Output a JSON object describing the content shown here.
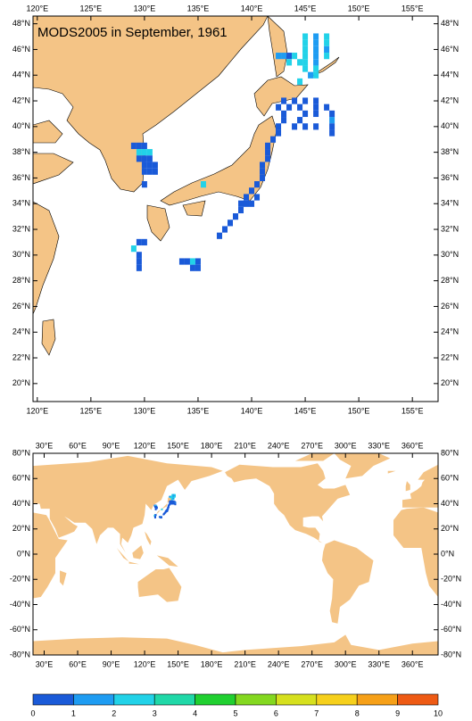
{
  "title": "MODS2005 in September, 1961",
  "land_color": "#f4c486",
  "maps": [
    {
      "xlim": [
        119.6,
        157.4
      ],
      "ylim": [
        18.6,
        48.6
      ],
      "xticks": [
        {
          "value": 120,
          "label": "120°E"
        },
        {
          "value": 125,
          "label": "125°E"
        },
        {
          "value": 130,
          "label": "130°E"
        },
        {
          "value": 135,
          "label": "135°E"
        },
        {
          "value": 140,
          "label": "140°E"
        },
        {
          "value": 145,
          "label": "145°E"
        },
        {
          "value": 150,
          "label": "150°E"
        },
        {
          "value": 155,
          "label": "155°E"
        }
      ],
      "yticks": [
        {
          "value": 20,
          "label": "20°N"
        },
        {
          "value": 22,
          "label": "22°N"
        },
        {
          "value": 24,
          "label": "24°N"
        },
        {
          "value": 26,
          "label": "26°N"
        },
        {
          "value": 28,
          "label": "28°N"
        },
        {
          "value": 30,
          "label": "30°N"
        },
        {
          "value": 32,
          "label": "32°N"
        },
        {
          "value": 34,
          "label": "34°N"
        },
        {
          "value": 36,
          "label": "36°N"
        },
        {
          "value": 38,
          "label": "38°N"
        },
        {
          "value": 40,
          "label": "40°N"
        },
        {
          "value": 42,
          "label": "42°N"
        },
        {
          "value": 44,
          "label": "44°N"
        },
        {
          "value": 46,
          "label": "46°N"
        },
        {
          "value": 48,
          "label": "48°N"
        }
      ]
    },
    {
      "xlim": [
        20,
        383
      ],
      "ylim": [
        -80,
        80
      ],
      "xticks": [
        {
          "value": 30,
          "label": "30°E"
        },
        {
          "value": 60,
          "label": "60°E"
        },
        {
          "value": 90,
          "label": "90°E"
        },
        {
          "value": 120,
          "label": "120°E"
        },
        {
          "value": 150,
          "label": "150°E"
        },
        {
          "value": 180,
          "label": "180°E"
        },
        {
          "value": 210,
          "label": "210°E"
        },
        {
          "value": 240,
          "label": "240°E"
        },
        {
          "value": 270,
          "label": "270°E"
        },
        {
          "value": 300,
          "label": "300°E"
        },
        {
          "value": 330,
          "label": "330°E"
        },
        {
          "value": 360,
          "label": "360°E"
        }
      ],
      "yticks": [
        {
          "value": 80,
          "label": "80°N"
        },
        {
          "value": 60,
          "label": "60°N"
        },
        {
          "value": 40,
          "label": "40°N"
        },
        {
          "value": 20,
          "label": "20°N"
        },
        {
          "value": 0,
          "label": "0°N"
        },
        {
          "value": -20,
          "label": "-20°N"
        },
        {
          "value": -40,
          "label": "-40°N"
        },
        {
          "value": -60,
          "label": "-60°N"
        },
        {
          "value": -80,
          "label": "-80°N"
        }
      ]
    }
  ],
  "cells": [
    [
      142.5,
      45.5,
      1.5
    ],
    [
      143,
      45.5,
      1.5
    ],
    [
      143.5,
      45.5,
      0.5
    ],
    [
      144,
      45.5,
      2.5
    ],
    [
      143.5,
      45,
      2.5
    ],
    [
      144.5,
      45,
      2.5
    ],
    [
      145,
      47,
      2.5
    ],
    [
      145,
      46.5,
      2.5
    ],
    [
      145,
      46,
      2.5
    ],
    [
      145,
      45.5,
      2.5
    ],
    [
      145,
      45,
      2.5
    ],
    [
      145,
      44.5,
      2.5
    ],
    [
      146,
      47,
      1.5
    ],
    [
      146,
      46.5,
      1.5
    ],
    [
      146,
      46,
      1.5
    ],
    [
      146,
      45.5,
      1.5
    ],
    [
      146,
      45,
      1.5
    ],
    [
      146,
      44.5,
      2.5
    ],
    [
      146,
      44,
      2.5
    ],
    [
      147,
      47,
      2.5
    ],
    [
      147,
      46.5,
      2.5
    ],
    [
      147,
      46,
      1.5
    ],
    [
      147,
      45.5,
      2.5
    ],
    [
      145.5,
      44,
      1.5
    ],
    [
      144.5,
      43.5,
      2.5
    ],
    [
      143,
      42,
      0.5
    ],
    [
      144,
      42,
      0.5
    ],
    [
      145,
      42,
      0.5
    ],
    [
      146,
      42,
      0.5
    ],
    [
      142.5,
      41.5,
      0.5
    ],
    [
      143.5,
      41.5,
      0.5
    ],
    [
      144.5,
      41.5,
      0.5
    ],
    [
      146,
      41.5,
      0.5
    ],
    [
      147,
      41.5,
      0.5
    ],
    [
      143,
      41,
      0.5
    ],
    [
      145,
      41,
      0.5
    ],
    [
      146,
      41,
      0.5
    ],
    [
      147.5,
      41,
      0.5
    ],
    [
      143,
      40.5,
      0.5
    ],
    [
      144.5,
      40.5,
      0.5
    ],
    [
      147.5,
      40.5,
      1.5
    ],
    [
      142.5,
      40,
      0.5
    ],
    [
      144,
      40,
      0.5
    ],
    [
      145,
      40,
      0.5
    ],
    [
      146,
      40,
      0.5
    ],
    [
      147.5,
      40,
      0.5
    ],
    [
      142.5,
      39.5,
      0.5
    ],
    [
      147.5,
      39.5,
      0.5
    ],
    [
      142,
      39,
      0.5
    ],
    [
      141.5,
      38.5,
      0.5
    ],
    [
      141.5,
      38,
      0.5
    ],
    [
      141.5,
      37.5,
      0.5
    ],
    [
      141,
      37,
      0.5
    ],
    [
      141,
      36.5,
      0.5
    ],
    [
      141,
      36,
      0.5
    ],
    [
      140.5,
      35.5,
      0.5
    ],
    [
      140,
      35,
      0.5
    ],
    [
      139.5,
      34.5,
      0.5
    ],
    [
      139.5,
      34,
      0.5
    ],
    [
      139,
      33.5,
      0.5
    ],
    [
      138.5,
      33,
      0.5
    ],
    [
      138,
      32.5,
      0.5
    ],
    [
      137.5,
      32,
      0.5
    ],
    [
      137,
      31.5,
      0.5
    ],
    [
      140.5,
      34.5,
      0.5
    ],
    [
      140,
      34,
      0.5
    ],
    [
      139,
      34,
      0.5
    ],
    [
      129,
      38.5,
      0.5
    ],
    [
      129.5,
      38.5,
      0.5
    ],
    [
      130,
      38.5,
      0.5
    ],
    [
      129.5,
      38,
      2.5
    ],
    [
      130,
      38,
      2.5
    ],
    [
      130.5,
      38,
      2.5
    ],
    [
      129.5,
      37.5,
      0.5
    ],
    [
      130,
      37.5,
      0.5
    ],
    [
      130.5,
      37.5,
      0.5
    ],
    [
      130,
      37,
      0.5
    ],
    [
      130.5,
      37,
      0.5
    ],
    [
      131,
      37,
      0.5
    ],
    [
      130,
      36.5,
      0.5
    ],
    [
      130.5,
      36.5,
      0.5
    ],
    [
      131,
      36.5,
      0.5
    ],
    [
      130,
      35.5,
      0.5
    ],
    [
      129.5,
      31,
      0.5
    ],
    [
      130,
      31,
      0.5
    ],
    [
      129,
      30.5,
      2.5
    ],
    [
      129.5,
      30,
      0.5
    ],
    [
      129.5,
      29.5,
      0.5
    ],
    [
      129.5,
      29,
      0.5
    ],
    [
      133.5,
      29.5,
      0.5
    ],
    [
      134,
      29.5,
      0.5
    ],
    [
      134.5,
      29.5,
      2.5
    ],
    [
      135,
      29.5,
      0.5
    ],
    [
      135,
      29,
      0.5
    ],
    [
      134.5,
      29,
      0.5
    ],
    [
      135.5,
      35.5,
      2.5
    ]
  ],
  "colorbar": {
    "levels": [
      0,
      1,
      2,
      3,
      4,
      5,
      6,
      7,
      8,
      9,
      10
    ],
    "colors": [
      "#1a5ad8",
      "#1e9cf2",
      "#22d2e8",
      "#20d8a8",
      "#20d030",
      "#84d820",
      "#d6e01e",
      "#f6d01c",
      "#f6a018",
      "#ee5a14"
    ]
  }
}
